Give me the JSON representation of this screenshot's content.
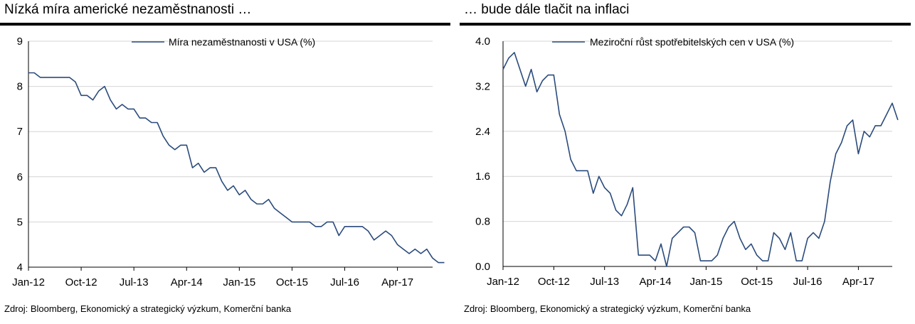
{
  "left": {
    "title": "Nízká míra americké nezaměstnanosti …",
    "source": "Zdroj: Bloomberg, Ekonomický a strategický výzkum, Komerční banka"
  },
  "right": {
    "title": "… bude dále tlačit na inflaci",
    "source": "Zdroj: Bloomberg, Ekonomický a strategický výzkum, Komerční banka"
  },
  "chart_data": [
    {
      "type": "line",
      "title": "",
      "xlabel": "",
      "ylabel": "",
      "ylim": [
        4,
        9
      ],
      "yticks": [
        4,
        5,
        6,
        7,
        8,
        9
      ],
      "xlim": [
        0,
        69
      ],
      "xtick_labels": [
        "Jan-12",
        "Oct-12",
        "Jul-13",
        "Apr-14",
        "Jan-15",
        "Oct-15",
        "Jul-16",
        "Apr-17"
      ],
      "xtick_positions": [
        0,
        9,
        18,
        27,
        36,
        45,
        54,
        63
      ],
      "grid": true,
      "legend": "top-center",
      "color": "#2a4b7c",
      "series": [
        {
          "name": "Míra nezaměstnanosti v USA (%)",
          "values": [
            8.3,
            8.3,
            8.2,
            8.2,
            8.2,
            8.2,
            8.2,
            8.2,
            8.1,
            7.8,
            7.8,
            7.7,
            7.9,
            8.0,
            7.7,
            7.5,
            7.6,
            7.5,
            7.5,
            7.3,
            7.3,
            7.2,
            7.2,
            6.9,
            6.7,
            6.6,
            6.7,
            6.7,
            6.2,
            6.3,
            6.1,
            6.2,
            6.2,
            5.9,
            5.7,
            5.8,
            5.6,
            5.7,
            5.5,
            5.4,
            5.4,
            5.5,
            5.3,
            5.2,
            5.1,
            5.0,
            5.0,
            5.0,
            5.0,
            4.9,
            4.9,
            5.0,
            5.0,
            4.7,
            4.9,
            4.9,
            4.9,
            4.9,
            4.8,
            4.6,
            4.7,
            4.8,
            4.7,
            4.5,
            4.4,
            4.3,
            4.4,
            4.3,
            4.4,
            4.2,
            4.1,
            4.1
          ]
        }
      ]
    },
    {
      "type": "line",
      "title": "",
      "xlabel": "",
      "ylabel": "",
      "ylim": [
        0.0,
        4.0
      ],
      "yticks": [
        "0.0",
        "0.8",
        "1.6",
        "2.4",
        "3.2",
        "4.0"
      ],
      "xlim": [
        0,
        69
      ],
      "xtick_labels": [
        "Jan-12",
        "Oct-12",
        "Jul-13",
        "Apr-14",
        "Jan-15",
        "Oct-15",
        "Jul-16",
        "Apr-17"
      ],
      "xtick_positions": [
        0,
        9,
        18,
        27,
        36,
        45,
        54,
        63
      ],
      "grid": true,
      "legend": "top-center",
      "color": "#2a4b7c",
      "series": [
        {
          "name": "Meziroční růst spotřebitelských cen v USA (%)",
          "values": [
            3.5,
            3.7,
            3.8,
            3.5,
            3.2,
            3.5,
            3.1,
            3.3,
            3.4,
            3.4,
            2.7,
            2.4,
            1.9,
            1.7,
            1.7,
            1.7,
            1.3,
            1.6,
            1.4,
            1.3,
            1.0,
            0.9,
            1.1,
            1.4,
            0.2,
            0.2,
            0.2,
            0.1,
            0.4,
            0.0,
            0.5,
            0.6,
            0.7,
            0.7,
            0.6,
            0.1,
            0.1,
            0.1,
            0.2,
            0.5,
            0.7,
            0.8,
            0.5,
            0.3,
            0.4,
            0.2,
            0.1,
            0.1,
            0.6,
            0.5,
            0.3,
            0.6,
            0.1,
            0.1,
            0.5,
            0.6,
            0.5,
            0.8,
            1.5,
            2.0,
            2.2,
            2.5,
            2.6,
            2.0,
            2.4,
            2.3,
            2.5,
            2.5,
            2.7,
            2.9,
            2.6
          ]
        }
      ]
    }
  ]
}
